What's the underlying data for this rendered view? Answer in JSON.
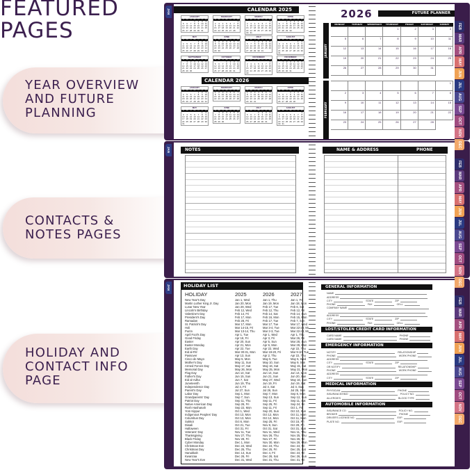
{
  "heading": "FEATURED\nPAGES",
  "callouts": [
    "YEAR OVERVIEW\nAND FUTURE\nPLANNING",
    "CONTACTS &\nNOTES PAGES",
    "HOLIDAY AND\nCONTACT INFO\nPAGE"
  ],
  "tabs": {
    "left": "JAN",
    "right": [
      "FEB",
      "MAR",
      "APR",
      "MAY",
      "JUN",
      "JUL",
      "AUG",
      "SEP",
      "OCT",
      "NOV",
      "DEC"
    ],
    "colors": [
      "#2d2c6b",
      "#5b3a7d",
      "#a34f7f",
      "#d8706f",
      "#f0a254",
      "#2a3a82",
      "#4a4890",
      "#7a4a92",
      "#a04c80",
      "#d47486",
      "#f2a86a"
    ],
    "left_color": "#2f3d85"
  },
  "colors": {
    "cover": "#3a1d4a",
    "text": "#3b1f4e",
    "callout_bg": "#f4dedb"
  },
  "year_calendar": {
    "title_2025": "CALENDAR 2025",
    "title_2026": "CALENDAR 2026",
    "months": [
      "JANUARY",
      "FEBRUARY",
      "MARCH",
      "APRIL",
      "MAY",
      "JUNE",
      "JULY",
      "AUGUST",
      "SEPTEMBER",
      "OCTOBER",
      "NOVEMBER",
      "DECEMBER"
    ],
    "weekdays": [
      "Su",
      "Mo",
      "Tu",
      "We",
      "Th",
      "Fr",
      "Sa"
    ]
  },
  "future_planner": {
    "year": "2026",
    "title": "FUTURE PLANNER",
    "weekdays": [
      "MONDAY",
      "TUESDAY",
      "WEDNESDAY",
      "THURSDAY",
      "FRIDAY",
      "SATURDAY",
      "SUNDAY"
    ],
    "months": [
      "JANUARY",
      "FEBRUARY"
    ]
  },
  "notes": {
    "title": "NOTES"
  },
  "contacts": {
    "title": "NAME & ADDRESS",
    "phone": "PHONE"
  },
  "holidays": {
    "title": "HOLIDAY LIST",
    "headers": [
      "HOLIDAY",
      "2025",
      "2026",
      "2027"
    ],
    "rows": [
      [
        "New Year's Day",
        "Jan 1, Wed",
        "Jan 1, Thu",
        "Jan 1, Fri"
      ],
      [
        "Martin Luther King Jr. Day",
        "Jan 20, Mon",
        "Jan 19, Mon",
        "Jan 18, Mon"
      ],
      [
        "Lunar New Year",
        "Jan 29, Wed",
        "Feb 17, Tue",
        "Feb 6, Sat"
      ],
      [
        "Lincoln's Birthday",
        "Feb 12, Wed",
        "Feb 12, Thu",
        "Feb 12, Fri"
      ],
      [
        "Valentine's Day",
        "Feb 14, Fri",
        "Feb 14, Sat",
        "Feb 14, Sun"
      ],
      [
        "President's Day",
        "Feb 17, Mon",
        "Feb 16, Mon",
        "Feb 15, Mon"
      ],
      [
        "Ramadan",
        "Feb 28, Fri",
        "Feb 17, Tue",
        "Feb 7, Sun"
      ],
      [
        "St. Patrick's Day",
        "Mar 17, Mon",
        "Mar 17, Tue",
        "Mar 17, Wed"
      ],
      [
        "Holi",
        "Mar 14-15, Fri",
        "Mar 3-4, Tue",
        "Mar 22-23, Mon"
      ],
      [
        "Purim",
        "Mar 13-14, Thu",
        "Mar 2-3, Tue",
        "Mar 22-23, Mon"
      ],
      [
        "April Fool's Day",
        "Apr 1, Tue",
        "Apr 1, Wed",
        "Apr 1, Thu"
      ],
      [
        "Good Friday",
        "Apr 18, Fri",
        "Apr 3, Fri",
        "Mar 26, Fri"
      ],
      [
        "Easter",
        "Apr 20, Sun",
        "Apr 5, Sun",
        "Mar 28, Sun"
      ],
      [
        "Easter Monday",
        "Apr 21, Mon",
        "Apr 6, Mon",
        "Mar 29, Mon"
      ],
      [
        "Earth Day",
        "Apr 22, Tue",
        "Apr 22, Wed",
        "Apr 22, Thu"
      ],
      [
        "Eid al-Fitr",
        "Mar 30-31, Mon",
        "Mar 19-20, Fri",
        "Mar 9-10, Tue"
      ],
      [
        "Passover",
        "Apr 13, Sun",
        "Apr 2, Thu",
        "Apr 22, Thu"
      ],
      [
        "Cinco de Mayo",
        "May 5, Mon",
        "May 5, Tue",
        "May 5, Wed"
      ],
      [
        "Mother's Day",
        "May 11, Sun",
        "May 10, Sun",
        "May 9, Sun"
      ],
      [
        "Armed Forces Day",
        "May 17, Sat",
        "May 16, Sat",
        "May 15, Sat"
      ],
      [
        "Memorial Day",
        "May 26, Mon",
        "May 25, Mon",
        "May 31, Mon"
      ],
      [
        "Flag Day",
        "Jun 14, Sat",
        "Jun 14, Sun",
        "Jun 14, Mon"
      ],
      [
        "Father's Day",
        "Jun 15, Sun",
        "Jun 21, Sun",
        "Jun 20, Sun"
      ],
      [
        "Eid al-Adha",
        "Jun 7, Sat",
        "May 27, Wed",
        "May 16, Sun"
      ],
      [
        "Juneteenth",
        "Jun 19, Thu",
        "Jun 19, Fri",
        "Jun 19, Sat"
      ],
      [
        "Independence Day",
        "Jul 4, Fri",
        "Jul 4, Sat",
        "Jul 4, Sun"
      ],
      [
        "Parent's Day",
        "Jul 27, Sun",
        "Jul 26, Sun",
        "Jul 25, Sun"
      ],
      [
        "Labor Day",
        "Sep 1, Mon",
        "Sep 7, Mon",
        "Sep 6, Mon"
      ],
      [
        "Grandparents' Day",
        "Sep 7, Sun",
        "Sep 13, Sun",
        "Sep 12, Sun"
      ],
      [
        "Patriot Day",
        "Sep 11, Thu",
        "Sep 11, Fri",
        "Sep 11, Sat"
      ],
      [
        "Native American Day",
        "Sep 26, Fri",
        "Sep 25, Fri",
        "Sep 24, Fri"
      ],
      [
        "Rosh Hashanah",
        "Sep 22, Mon",
        "Sep 11, Fri",
        "Oct 1, Fri"
      ],
      [
        "Yom Kippur",
        "Oct 1, Wed",
        "Sep 20, Sun",
        "Oct 10, Sun"
      ],
      [
        "Indigenous Peoples' Day",
        "Oct 13, Mon",
        "Oct 12, Mon",
        "Oct 11, Mon"
      ],
      [
        "Columbus Day",
        "Oct 13, Mon",
        "Oct 12, Mon",
        "Oct 11, Mon"
      ],
      [
        "Sukkot",
        "Oct 6, Mon",
        "Sep 25, Fri",
        "Oct 15, Fri"
      ],
      [
        "Diwali",
        "Oct 21, Tue",
        "Nov 8, Sun",
        "Oct 29, Fri"
      ],
      [
        "Halloween",
        "Oct 31, Fri",
        "Oct 31, Sat",
        "Oct 31, Sun"
      ],
      [
        "Veterans' Day",
        "Nov 11, Tue",
        "Nov 11, Wed",
        "Nov 11, Thu"
      ],
      [
        "Thanksgiving",
        "Nov 27, Thu",
        "Nov 26, Thu",
        "Nov 25, Thu"
      ],
      [
        "Black Friday",
        "Nov 28, Fri",
        "Nov 27, Fri",
        "Nov 26, Fri"
      ],
      [
        "Cyber Monday",
        "Dec 1, Mon",
        "Nov 30, Mon",
        "Nov 29, Mon"
      ],
      [
        "Christmas Eve",
        "Dec 24, Wed",
        "Dec 24, Thu",
        "Dec 24, Fri"
      ],
      [
        "Christmas Day",
        "Dec 25, Thu",
        "Dec 25, Fri",
        "Dec 25, Sat"
      ],
      [
        "Hanukkah",
        "Dec 14, Sun",
        "Dec 4, Fri",
        "Dec 24, Fri"
      ],
      [
        "Kwanzaa",
        "Dec 26, Fri",
        "Dec 26, Sat",
        "Dec 26, Sun"
      ],
      [
        "New Year's Eve",
        "Dec 31, Wed",
        "Dec 31, Thu",
        "Dec 31, Fri"
      ]
    ]
  },
  "info": {
    "sections": [
      {
        "title": "GENERAL INFORMATION",
        "rows": [
          [
            "NAME"
          ],
          [
            "ADDRESS"
          ],
          [
            "CITY",
            "STATE",
            "ZIP"
          ],
          [
            "PHONE",
            "FAX",
            "CELL"
          ],
          [
            "COMPANY NAME"
          ],
          [
            ""
          ],
          [
            "ADDRESS"
          ],
          [
            "CITY",
            "STATE",
            "ZIP"
          ],
          [
            "PHONE",
            "FAX",
            "CELL"
          ]
        ]
      },
      {
        "title": "LOST/STOLEN CREDIT CARD INFORMATION",
        "rows": [
          [
            "CARD NAME",
            "PHONE"
          ],
          [
            "CARD NAME",
            "PHONE"
          ]
        ]
      },
      {
        "title": "EMERGENCY INFORMATION",
        "rows": [
          [
            "NOTIFY",
            "RELATIONSHIP"
          ],
          [
            "PHONE",
            "WORK PHONE"
          ],
          [
            "ADDRESS"
          ],
          [
            "CITY",
            "STATE",
            "ZIP"
          ],
          [
            "OR NOTIFY",
            "RELATIONSHIP"
          ],
          [
            "PHONE",
            "WORK PHONE"
          ],
          [
            "ADDRESS"
          ],
          [
            "CITY",
            "STATE",
            "ZIP"
          ]
        ]
      },
      {
        "title": "MEDICAL INFORMATION",
        "rows": [
          [
            "PHYSICIAN",
            "PHONE"
          ],
          [
            "INSURANCE/HMO",
            "POLICY NO."
          ],
          [
            "ALLERGIES",
            "BLOOD TYPE"
          ]
        ]
      },
      {
        "title": "AUTOMOBILE INFORMATION",
        "rows": [
          [
            "INSURANCE CO.",
            "POLICY NO."
          ],
          [
            "BROKER",
            "PHONE"
          ],
          [
            "DRIVER'S LICENSE NO.",
            "EXP."
          ],
          [
            "PLATE NO.",
            "EXP."
          ]
        ]
      }
    ]
  }
}
